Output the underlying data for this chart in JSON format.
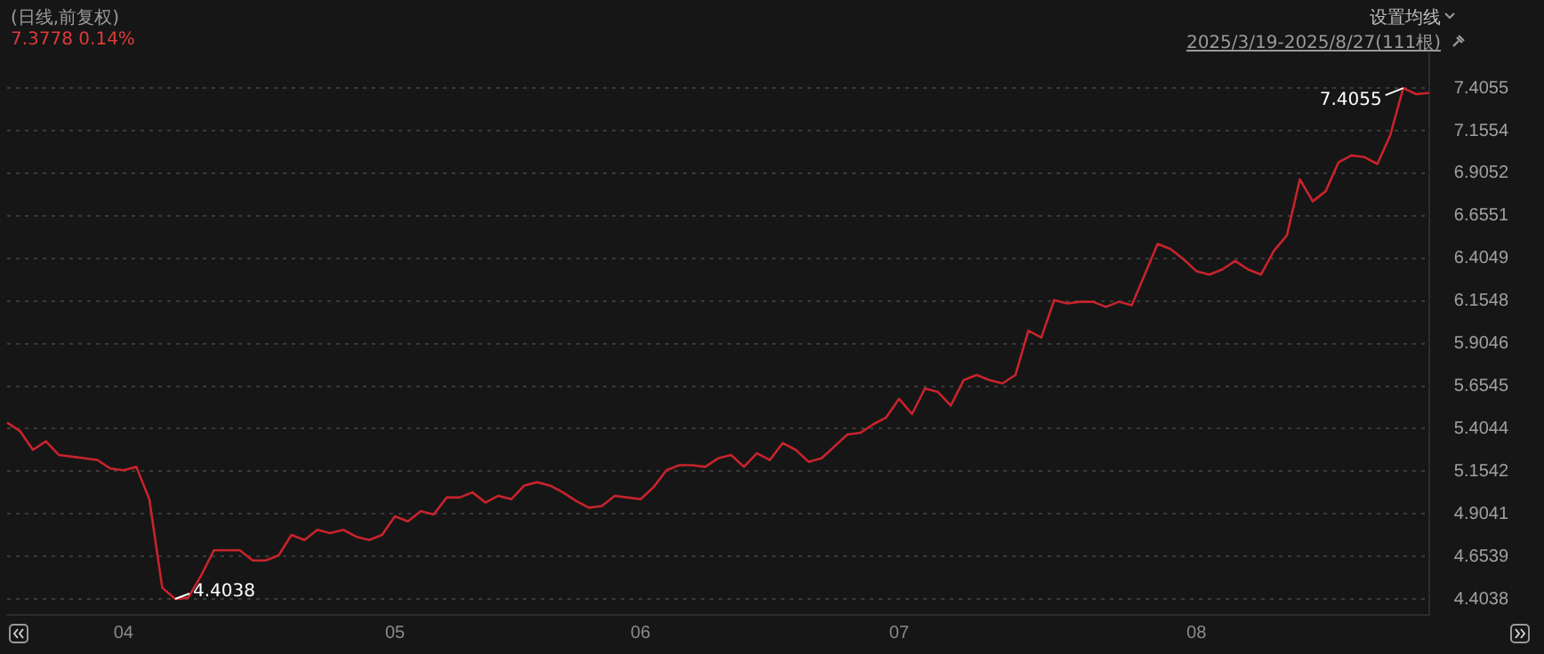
{
  "chart_data": {
    "type": "line",
    "title": "(日线,前复权)",
    "subtitle": "7.3778 0.14%",
    "annotations": [
      "设置均线",
      "2025/3/19-2025/8/27(111根)"
    ],
    "categories": [
      null,
      null,
      null,
      null,
      null,
      null,
      null,
      null,
      null,
      "04",
      null,
      null,
      null,
      null,
      null,
      null,
      null,
      null,
      null,
      null,
      null,
      null,
      null,
      null,
      null,
      null,
      null,
      null,
      null,
      null,
      "05",
      null,
      null,
      null,
      null,
      null,
      null,
      null,
      null,
      null,
      null,
      null,
      null,
      null,
      null,
      null,
      null,
      null,
      null,
      "06",
      null,
      null,
      null,
      null,
      null,
      null,
      null,
      null,
      null,
      null,
      null,
      null,
      null,
      null,
      null,
      null,
      null,
      null,
      null,
      "07",
      null,
      null,
      null,
      null,
      null,
      null,
      null,
      null,
      null,
      null,
      null,
      null,
      null,
      null,
      null,
      null,
      null,
      null,
      null,
      null,
      null,
      null,
      "08",
      null,
      null,
      null,
      null,
      null,
      null,
      null,
      null,
      null,
      null,
      null,
      null,
      null,
      null,
      null,
      null,
      null,
      null
    ],
    "series": [
      {
        "color": "#c8232c",
        "values": [
          5.44,
          5.39,
          5.28,
          5.33,
          5.25,
          5.24,
          5.23,
          5.22,
          5.17,
          5.16,
          5.18,
          4.99,
          4.47,
          4.4038,
          4.41,
          4.54,
          4.69,
          4.69,
          4.69,
          4.63,
          4.63,
          4.66,
          4.78,
          4.75,
          4.81,
          4.79,
          4.81,
          4.77,
          4.75,
          4.78,
          4.89,
          4.86,
          4.92,
          4.9,
          5.0,
          5.0,
          5.03,
          4.97,
          5.01,
          4.99,
          5.07,
          5.09,
          5.07,
          5.03,
          4.98,
          4.94,
          4.95,
          5.01,
          5.0,
          4.99,
          5.06,
          5.16,
          5.19,
          5.19,
          5.18,
          5.23,
          5.25,
          5.18,
          5.26,
          5.22,
          5.32,
          5.28,
          5.21,
          5.23,
          5.3,
          5.37,
          5.38,
          5.43,
          5.47,
          5.58,
          5.49,
          5.64,
          5.62,
          5.54,
          5.69,
          5.72,
          5.69,
          5.67,
          5.72,
          5.98,
          5.94,
          6.16,
          6.14,
          6.15,
          6.15,
          6.12,
          6.15,
          6.13,
          6.31,
          6.49,
          6.46,
          6.4,
          6.33,
          6.31,
          6.34,
          6.39,
          6.34,
          6.31,
          6.45,
          6.54,
          6.87,
          6.74,
          6.8,
          6.97,
          7.01,
          7.0,
          6.96,
          7.13,
          7.4055,
          7.37,
          7.3778
        ],
        "value_labels": [
          null,
          null,
          null,
          null,
          null,
          null,
          null,
          null,
          null,
          null,
          null,
          null,
          null,
          "4.4038",
          null,
          null,
          null,
          null,
          null,
          null,
          null,
          null,
          null,
          null,
          null,
          null,
          null,
          null,
          null,
          null,
          null,
          null,
          null,
          null,
          null,
          null,
          null,
          null,
          null,
          null,
          null,
          null,
          null,
          null,
          null,
          null,
          null,
          null,
          null,
          null,
          null,
          null,
          null,
          null,
          null,
          null,
          null,
          null,
          null,
          null,
          null,
          null,
          null,
          null,
          null,
          null,
          null,
          null,
          null,
          null,
          null,
          null,
          null,
          null,
          null,
          null,
          null,
          null,
          null,
          null,
          null,
          null,
          null,
          null,
          null,
          null,
          null,
          null,
          null,
          null,
          null,
          null,
          null,
          null,
          null,
          null,
          null,
          null,
          null,
          null,
          null,
          null,
          null,
          null,
          null,
          null,
          null,
          null,
          "7.4055",
          null,
          null
        ]
      }
    ],
    "ylim": [
      4.31,
      7.61
    ],
    "yticks": [
      4.4038,
      4.6539,
      4.9041,
      5.1542,
      5.4044,
      5.6545,
      5.9046,
      6.1548,
      6.4049,
      6.6551,
      6.9052,
      7.1554,
      7.4055
    ],
    "grid": "y",
    "legend": false,
    "marker": "none",
    "line_style": "solid"
  }
}
